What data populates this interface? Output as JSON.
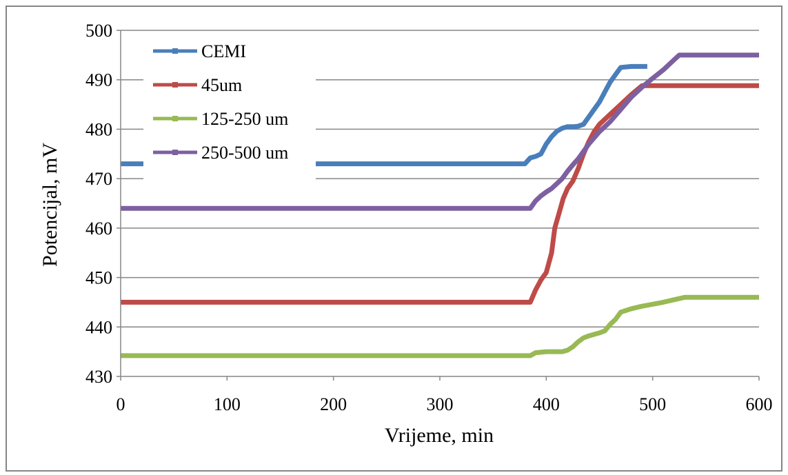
{
  "chart_data": {
    "type": "line",
    "xlabel": "Vrijeme, min",
    "ylabel": "Potencijal, mV",
    "xlim": [
      0,
      600
    ],
    "ylim": [
      430,
      500
    ],
    "xticks": [
      "0",
      "100",
      "200",
      "300",
      "400",
      "500",
      "600"
    ],
    "yticks": [
      "430",
      "440",
      "450",
      "460",
      "470",
      "480",
      "490",
      "500"
    ],
    "grid": "horizontal",
    "legend_position": "top-left",
    "series": [
      {
        "name": "CEMI",
        "color": "#4a7ebb",
        "x": [
          0,
          380,
          385,
          390,
          395,
          400,
          405,
          410,
          415,
          420,
          425,
          430,
          435,
          440,
          445,
          450,
          455,
          460,
          465,
          470,
          480,
          490,
          495
        ],
        "y": [
          473,
          473,
          474.2,
          474.5,
          475,
          477,
          478.5,
          479.6,
          480.2,
          480.5,
          480.5,
          480.6,
          481,
          482.5,
          484,
          485.5,
          487.5,
          489.5,
          491,
          492.5,
          492.7,
          492.7,
          492.7
        ]
      },
      {
        "name": "45um",
        "color": "#be4b48",
        "x": [
          0,
          385,
          390,
          395,
          400,
          405,
          408,
          412,
          416,
          420,
          425,
          430,
          435,
          440,
          445,
          450,
          460,
          470,
          480,
          490,
          500,
          600
        ],
        "y": [
          445,
          445,
          447.5,
          449.5,
          451,
          455,
          460,
          463,
          466,
          468,
          469.5,
          472,
          475,
          477.5,
          479.5,
          481,
          483,
          485,
          487,
          488.8,
          488.8,
          488.8
        ]
      },
      {
        "name": "125-250 um",
        "color": "#98b954",
        "x": [
          0,
          385,
          390,
          400,
          410,
          415,
          420,
          425,
          430,
          435,
          440,
          445,
          450,
          455,
          460,
          465,
          470,
          480,
          490,
          500,
          510,
          520,
          530,
          540,
          600
        ],
        "y": [
          434.2,
          434.2,
          434.8,
          435,
          435,
          435,
          435.3,
          436,
          437,
          437.8,
          438.2,
          438.5,
          438.8,
          439.2,
          440.5,
          441.5,
          443,
          443.7,
          444.2,
          444.6,
          445,
          445.5,
          446,
          446,
          446
        ]
      },
      {
        "name": "250-500 um",
        "color": "#7d60a0",
        "x": [
          0,
          385,
          390,
          395,
          400,
          405,
          410,
          415,
          420,
          425,
          430,
          435,
          440,
          450,
          460,
          470,
          480,
          490,
          500,
          510,
          520,
          525,
          530,
          600
        ],
        "y": [
          464,
          464,
          465.5,
          466.5,
          467.3,
          468,
          469,
          470,
          471.5,
          472.8,
          474,
          475.5,
          477,
          479.5,
          481.5,
          484,
          486.5,
          488.5,
          490.3,
          492,
          494,
          495,
          495,
          495
        ]
      }
    ]
  }
}
